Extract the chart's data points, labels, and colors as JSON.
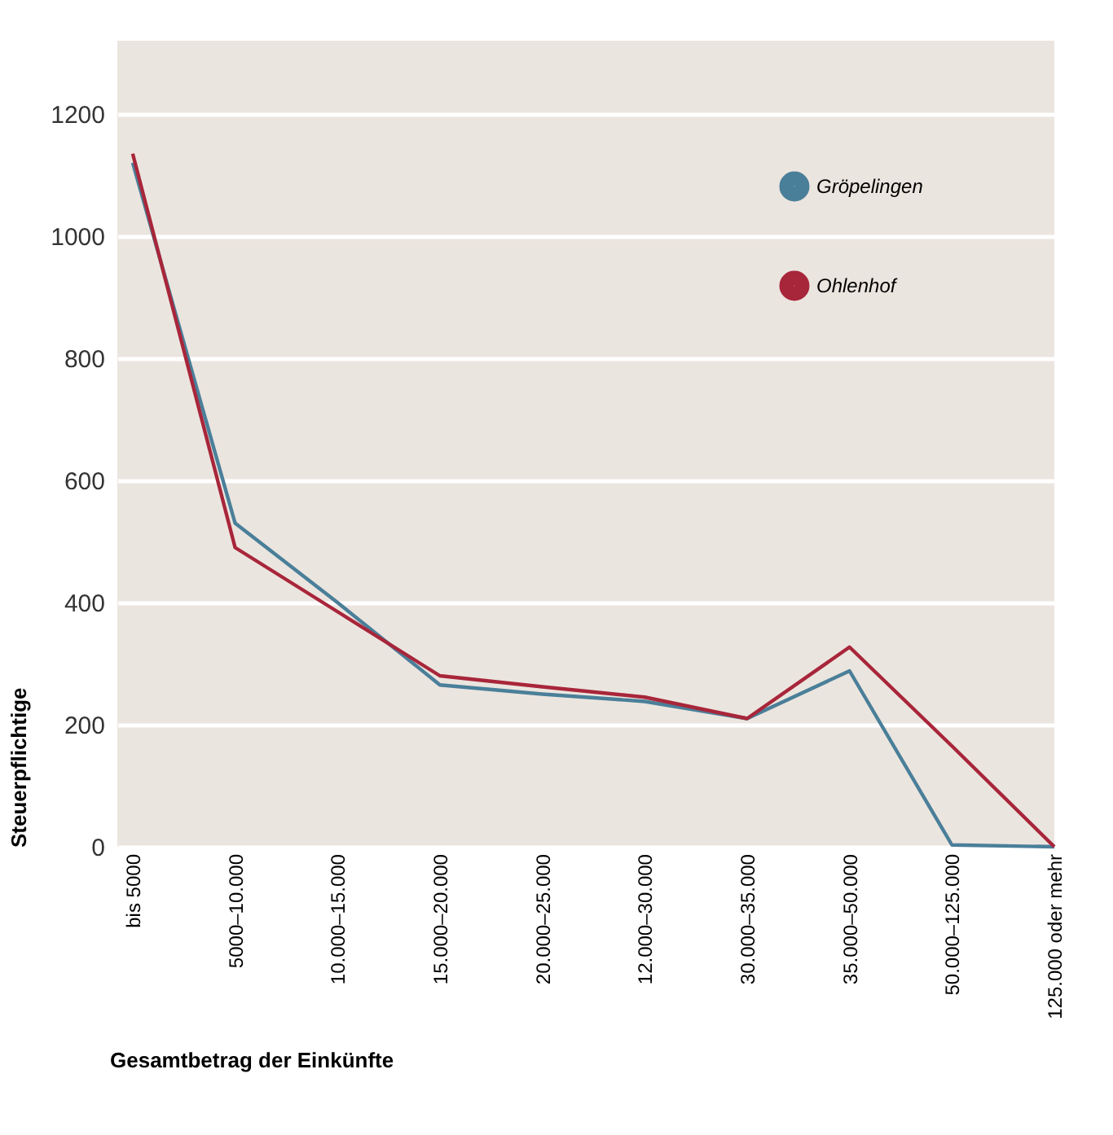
{
  "chart_data": {
    "type": "line",
    "categories": [
      "bis 5000",
      "5000–10.000",
      "10.000–15.000",
      "15.000–20.000",
      "20.000–25.000",
      "12.000–30.000",
      "30.000–35.000",
      "35.000–50.000",
      "50.000–125.000",
      "125.000 oder mehr"
    ],
    "series": [
      {
        "name": "Gröpelingen",
        "color": "#4a7f99",
        "values": [
          1120,
          530,
          400,
          265,
          250,
          238,
          210,
          288,
          3,
          0
        ]
      },
      {
        "name": "Ohlenhof",
        "color": "#a8263a",
        "values": [
          1135,
          490,
          385,
          280,
          262,
          245,
          210,
          327,
          165,
          0
        ]
      }
    ],
    "xlabel": "Gesamtbetrag der Einkünfte",
    "ylabel": "Steuerpflichtige",
    "ylim": [
      0,
      1320
    ],
    "yticks": [
      0,
      200,
      400,
      600,
      800,
      1000,
      1200
    ],
    "grid": "y",
    "legend": "top right",
    "marker": "none",
    "line_style": "solid"
  }
}
